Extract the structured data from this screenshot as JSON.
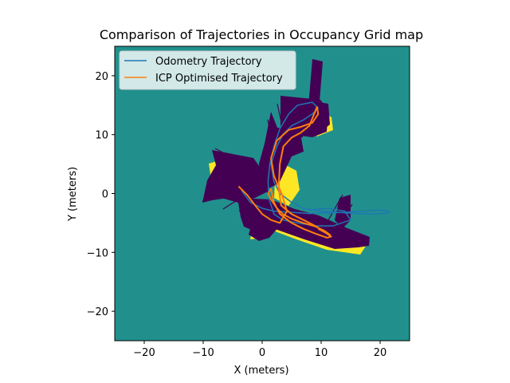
{
  "chart_data": {
    "type": "line",
    "title": "Comparison of Trajectories in Occupancy Grid map",
    "xlabel": "X (meters)",
    "ylabel": "Y (meters)",
    "xlim": [
      -25,
      25
    ],
    "ylim": [
      -25,
      25
    ],
    "xticks": [
      -20,
      -10,
      0,
      10,
      20
    ],
    "yticks": [
      -20,
      -10,
      0,
      10,
      20
    ],
    "grid": false,
    "legend_position": "top-left",
    "background_map": "occupancy grid (viridis colormap)",
    "colors": {
      "map_free": "#21908d",
      "map_occupied": "#440154",
      "map_unknown": "#fde725",
      "odometry": "#1f77b4",
      "icp": "#ff7f0e"
    },
    "series": [
      {
        "name": "Odometry Trajectory",
        "color": "#1f77b4",
        "x": [
          -3.5,
          -2,
          0,
          2,
          5,
          8,
          11,
          14,
          17,
          20,
          21.5,
          21.5,
          19,
          16,
          13,
          10,
          7,
          5,
          3,
          2,
          1.5,
          2.5,
          3.5,
          5,
          7,
          8.5,
          9.5,
          8.5,
          6,
          4.5,
          3,
          2,
          1.3,
          1,
          1.2,
          2,
          3.5,
          6,
          9,
          12,
          15,
          14,
          11,
          8
        ],
        "y": [
          0.5,
          -1.5,
          -2.5,
          -3,
          -3.2,
          -3.4,
          -3.3,
          -3.2,
          -3,
          -2.8,
          -3,
          -3.3,
          -3.5,
          -3.4,
          -3.2,
          -3,
          -2.5,
          -1.5,
          0,
          2,
          5,
          8,
          10,
          11.5,
          12.5,
          13.5,
          14.5,
          15.5,
          15,
          13.5,
          11,
          8,
          5,
          2,
          -1,
          -3.5,
          -4.5,
          -5,
          -5.5,
          -5.5,
          -4.5,
          -3,
          -2.5,
          -2.8
        ]
      },
      {
        "name": "ICP Optimised Trajectory",
        "color": "#ff7f0e",
        "x": [
          -4,
          -2.5,
          -1.2,
          0,
          1.5,
          3,
          4.2,
          3.3,
          2,
          1.5,
          2.5,
          4.5,
          6.5,
          8.5,
          9.5,
          9.3,
          8,
          6.5,
          5,
          3.6,
          3,
          2.8,
          3.2,
          5,
          7,
          9,
          10.5,
          11.7,
          11,
          9,
          7,
          5,
          3,
          2,
          1.5,
          1,
          1.5,
          2.5,
          3.5,
          5,
          7,
          9,
          10.5,
          11.5,
          11,
          9.5
        ],
        "y": [
          1.2,
          -0.3,
          -2,
          -3.5,
          -4.5,
          -5,
          -3,
          0,
          3,
          6,
          9,
          10.8,
          11.3,
          12,
          13.5,
          14.7,
          11.5,
          10.3,
          9.5,
          8,
          5,
          1,
          -2,
          -3.5,
          -4.5,
          -5.5,
          -6.5,
          -7.3,
          -7.5,
          -6.8,
          -6,
          -5,
          -3.5,
          -1.5,
          0.8,
          0,
          -1,
          -2.5,
          -3.5,
          -4.3,
          -5,
          -5.6,
          -6.3,
          -7,
          -6.8,
          -6
        ]
      }
    ]
  }
}
